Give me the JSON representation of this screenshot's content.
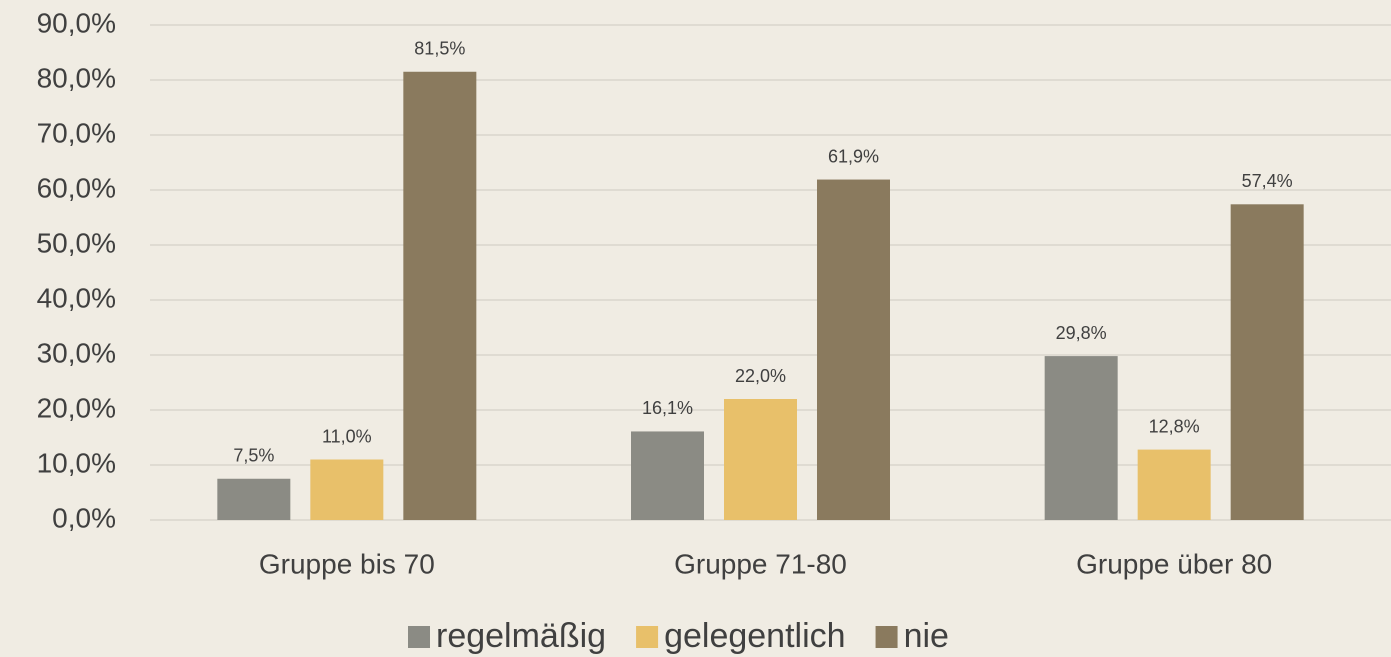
{
  "chart_data": {
    "type": "bar",
    "categories": [
      "Gruppe bis 70",
      "Gruppe 71-80",
      "Gruppe über 80"
    ],
    "series": [
      {
        "name": "regelmäßig",
        "color": "#8b8b84",
        "values": [
          7.5,
          16.1,
          29.8
        ],
        "value_labels": [
          "7,5%",
          "16,1%",
          "29,8%"
        ]
      },
      {
        "name": "gelegentlich",
        "color": "#e8c06a",
        "values": [
          11.0,
          22.0,
          12.8
        ],
        "value_labels": [
          "11,0%",
          "22,0%",
          "12,8%"
        ]
      },
      {
        "name": "nie",
        "color": "#8a7a5e",
        "values": [
          81.5,
          61.9,
          57.4
        ],
        "value_labels": [
          "81,5%",
          "61,9%",
          "57,4%"
        ]
      }
    ],
    "ylim": [
      0,
      90
    ],
    "yticks": [
      {
        "value": 0,
        "label": "0,0%"
      },
      {
        "value": 10,
        "label": "10,0%"
      },
      {
        "value": 20,
        "label": "20,0%"
      },
      {
        "value": 30,
        "label": "30,0%"
      },
      {
        "value": 40,
        "label": "40,0%"
      },
      {
        "value": 50,
        "label": "50,0%"
      },
      {
        "value": 60,
        "label": "60,0%"
      },
      {
        "value": 70,
        "label": "70,0%"
      },
      {
        "value": 80,
        "label": "80,0%"
      },
      {
        "value": 90,
        "label": "90,0%"
      }
    ],
    "grid": true,
    "legend": "bottom"
  }
}
